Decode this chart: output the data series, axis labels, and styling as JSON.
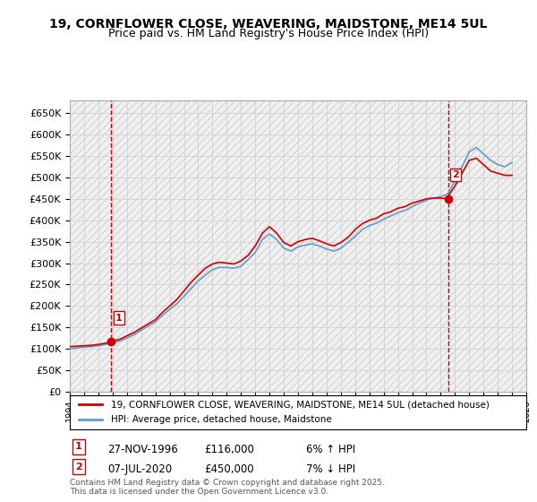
{
  "title_line1": "19, CORNFLOWER CLOSE, WEAVERING, MAIDSTONE, ME14 5UL",
  "title_line2": "Price paid vs. HM Land Registry's House Price Index (HPI)",
  "legend_label_red": "19, CORNFLOWER CLOSE, WEAVERING, MAIDSTONE, ME14 5UL (detached house)",
  "legend_label_blue": "HPI: Average price, detached house, Maidstone",
  "annotation1_label": "1",
  "annotation1_date": "27-NOV-1996",
  "annotation1_price": "£116,000",
  "annotation1_hpi": "6% ↑ HPI",
  "annotation2_label": "2",
  "annotation2_date": "07-JUL-2020",
  "annotation2_price": "£450,000",
  "annotation2_hpi": "7% ↓ HPI",
  "footnote": "Contains HM Land Registry data © Crown copyright and database right 2025.\nThis data is licensed under the Open Government Licence v3.0.",
  "red_color": "#cc0000",
  "blue_color": "#6699cc",
  "vline_color": "#cc0000",
  "ylim_min": 0,
  "ylim_max": 680000,
  "ytick_step": 50000,
  "x_start_year": 1994,
  "x_end_year": 2026,
  "sale1_year": 1996.91,
  "sale1_price": 116000,
  "sale2_year": 2020.52,
  "sale2_price": 450000,
  "red_x": [
    1994.0,
    1994.5,
    1995.0,
    1995.5,
    1996.0,
    1996.5,
    1996.91,
    1997.0,
    1997.5,
    1998.0,
    1998.5,
    1999.0,
    1999.5,
    2000.0,
    2000.5,
    2001.0,
    2001.5,
    2002.0,
    2002.5,
    2003.0,
    2003.5,
    2004.0,
    2004.5,
    2005.0,
    2005.5,
    2006.0,
    2006.5,
    2007.0,
    2007.5,
    2008.0,
    2008.5,
    2009.0,
    2009.5,
    2010.0,
    2010.5,
    2011.0,
    2011.5,
    2012.0,
    2012.5,
    2013.0,
    2013.5,
    2014.0,
    2014.5,
    2015.0,
    2015.5,
    2016.0,
    2016.5,
    2017.0,
    2017.5,
    2018.0,
    2018.5,
    2019.0,
    2019.5,
    2020.0,
    2020.52,
    2020.5,
    2021.0,
    2021.5,
    2022.0,
    2022.5,
    2023.0,
    2023.5,
    2024.0,
    2024.5,
    2025.0
  ],
  "red_y": [
    105000,
    106000,
    107000,
    108000,
    110000,
    113000,
    116000,
    118000,
    122000,
    130000,
    138000,
    148000,
    158000,
    168000,
    185000,
    200000,
    215000,
    235000,
    255000,
    272000,
    288000,
    298000,
    302000,
    300000,
    298000,
    305000,
    318000,
    340000,
    370000,
    385000,
    370000,
    348000,
    340000,
    350000,
    355000,
    358000,
    352000,
    345000,
    340000,
    348000,
    360000,
    378000,
    392000,
    400000,
    405000,
    415000,
    420000,
    428000,
    432000,
    440000,
    445000,
    450000,
    452000,
    452000,
    450000,
    455000,
    480000,
    510000,
    540000,
    545000,
    530000,
    515000,
    510000,
    505000,
    505000
  ],
  "blue_x": [
    1994.0,
    1994.5,
    1995.0,
    1995.5,
    1996.0,
    1996.5,
    1997.0,
    1997.5,
    1998.0,
    1998.5,
    1999.0,
    1999.5,
    2000.0,
    2000.5,
    2001.0,
    2001.5,
    2002.0,
    2002.5,
    2003.0,
    2003.5,
    2004.0,
    2004.5,
    2005.0,
    2005.5,
    2006.0,
    2006.5,
    2007.0,
    2007.5,
    2008.0,
    2008.5,
    2009.0,
    2009.5,
    2010.0,
    2010.5,
    2011.0,
    2011.5,
    2012.0,
    2012.5,
    2013.0,
    2013.5,
    2014.0,
    2014.5,
    2015.0,
    2015.5,
    2016.0,
    2016.5,
    2017.0,
    2017.5,
    2018.0,
    2018.5,
    2019.0,
    2019.5,
    2020.0,
    2020.5,
    2021.0,
    2021.5,
    2022.0,
    2022.5,
    2023.0,
    2023.5,
    2024.0,
    2024.5,
    2025.0
  ],
  "blue_y": [
    100000,
    102000,
    104000,
    105000,
    107000,
    110000,
    114000,
    118000,
    125000,
    133000,
    143000,
    153000,
    163000,
    178000,
    192000,
    205000,
    222000,
    240000,
    258000,
    272000,
    285000,
    290000,
    290000,
    288000,
    293000,
    308000,
    325000,
    355000,
    368000,
    355000,
    335000,
    328000,
    338000,
    342000,
    345000,
    340000,
    333000,
    328000,
    335000,
    348000,
    362000,
    378000,
    388000,
    393000,
    403000,
    410000,
    418000,
    423000,
    432000,
    440000,
    447000,
    452000,
    455000,
    462000,
    492000,
    525000,
    560000,
    570000,
    555000,
    540000,
    530000,
    525000,
    535000
  ],
  "bg_color": "#ffffff",
  "grid_color": "#cccccc",
  "hatch_color": "#e0e0e0"
}
